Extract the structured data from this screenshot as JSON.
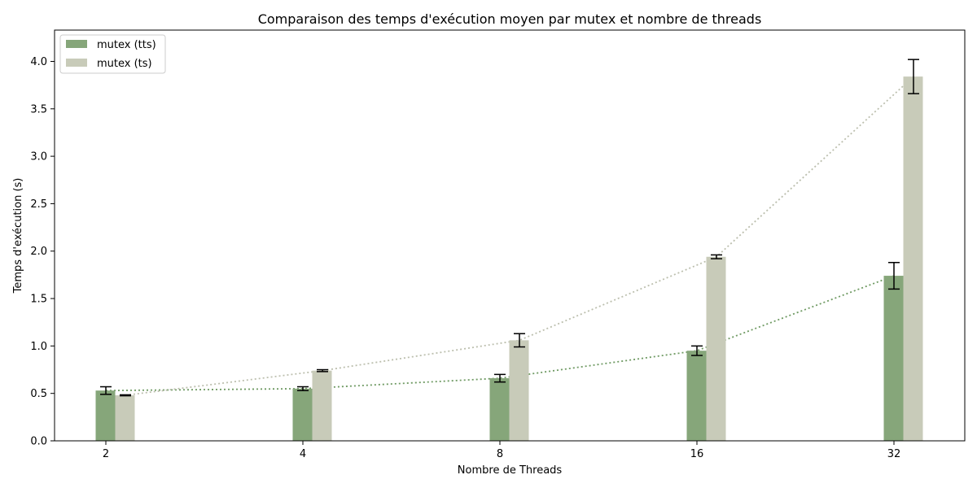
{
  "chart_data": {
    "type": "bar",
    "title": "Comparaison des temps d'exécution moyen par mutex et nombre de threads",
    "xlabel": "Nombre de Threads",
    "ylabel": "Temps d'exécution (s)",
    "categories": [
      "2",
      "4",
      "8",
      "16",
      "32"
    ],
    "ylim": [
      0,
      4.33
    ],
    "yticks": [
      0.0,
      0.5,
      1.0,
      1.5,
      2.0,
      2.5,
      3.0,
      3.5,
      4.0
    ],
    "ytick_labels": [
      "0.0",
      "0.5",
      "1.0",
      "1.5",
      "2.0",
      "2.5",
      "3.0",
      "3.5",
      "4.0"
    ],
    "grid": false,
    "legend_position": "top-left",
    "series": [
      {
        "name": "mutex (tts)",
        "color": "#86a67a",
        "trend_color": "#6f9a63",
        "values": [
          0.53,
          0.55,
          0.66,
          0.95,
          1.74
        ],
        "errors": [
          0.04,
          0.02,
          0.04,
          0.05,
          0.14
        ]
      },
      {
        "name": "mutex (ts)",
        "color": "#c8cbb9",
        "trend_color": "#bcbfae",
        "values": [
          0.48,
          0.74,
          1.06,
          1.94,
          3.84
        ],
        "errors": [
          0.005,
          0.01,
          0.07,
          0.02,
          0.18
        ]
      }
    ]
  }
}
